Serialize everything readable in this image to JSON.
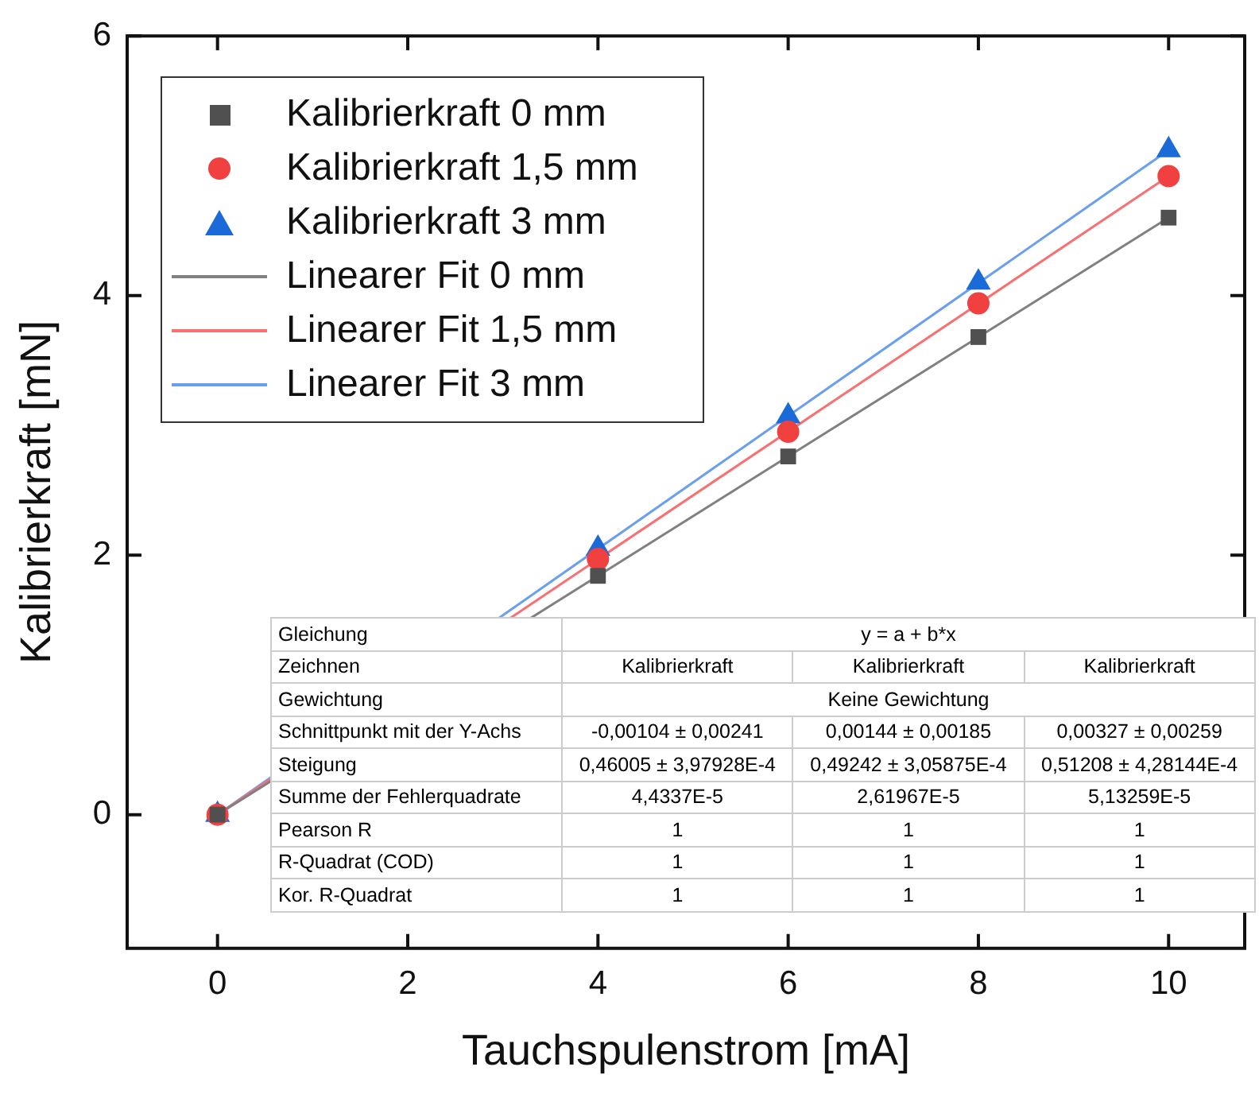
{
  "chart_data": {
    "type": "scatter",
    "xlabel": "Tauchspulenstrom [mA]",
    "ylabel": "Kalibrierkraft [mN]",
    "xlim": [
      -0.95,
      10.8
    ],
    "xticks": [
      0,
      2,
      4,
      6,
      8,
      10
    ],
    "ylim": [
      -1.03,
      6
    ],
    "yticks": [
      0,
      2,
      4,
      6
    ],
    "grid": false,
    "legend": "top left",
    "series": [
      {
        "name": "Kalibrierkraft 0 mm",
        "type": "scatter",
        "marker": "square",
        "color": "#505050",
        "x": [
          0,
          4,
          6,
          8,
          10
        ],
        "values": [
          0,
          1.84,
          2.76,
          3.68,
          4.6
        ]
      },
      {
        "name": "Kalibrierkraft 1,5 mm",
        "type": "scatter",
        "marker": "circle",
        "color": "#f0403f",
        "x": [
          0,
          4,
          6,
          8,
          10
        ],
        "values": [
          0,
          1.97,
          2.95,
          3.94,
          4.92
        ]
      },
      {
        "name": "Kalibrierkraft 3 mm",
        "type": "scatter",
        "marker": "triangle",
        "color": "#1a6ad8",
        "x": [
          0,
          4,
          6,
          8,
          10
        ],
        "values": [
          0,
          2.05,
          3.07,
          4.1,
          5.12
        ]
      },
      {
        "name": "Linearer Fit 0 mm",
        "type": "line",
        "marker": "none",
        "color": "#808080",
        "x": [
          0,
          10
        ],
        "values": [
          0,
          4.6
        ]
      },
      {
        "name": "Linearer Fit 1,5 mm",
        "type": "line",
        "marker": "none",
        "color": "#f87070",
        "x": [
          0,
          10
        ],
        "values": [
          0,
          4.92
        ]
      },
      {
        "name": "Linearer Fit 3 mm",
        "type": "line",
        "marker": "none",
        "color": "#6a9ef0",
        "x": [
          0,
          10
        ],
        "values": [
          0,
          5.12
        ]
      }
    ],
    "annotations": [
      "Gleichung",
      "y = a + b*x",
      "Zeichnen",
      "Kalibrierkraft",
      "Kalibrierkraft",
      "Kalibrierkraft",
      "Gewichtung",
      "Keine Gewichtung",
      "Schnittpunkt mit der Y-Achs",
      "-0,00104 ± 0,00241",
      "0,00144 ± 0,00185",
      "0,00327 ± 0,00259",
      "Steigung",
      "0,46005 ± 3,97928E-4",
      "0,49242 ± 3,05875E-4",
      "0,51208 ± 4,28144E-4",
      "Summe der Fehlerquadrate",
      "4,4337E-5",
      "2,61967E-5",
      "5,13259E-5",
      "Pearson R",
      "1",
      "1",
      "1",
      "R-Quadrat (COD)",
      "1",
      "1",
      "1",
      "Kor. R-Quadrat",
      "1",
      "1",
      "1"
    ]
  }
}
